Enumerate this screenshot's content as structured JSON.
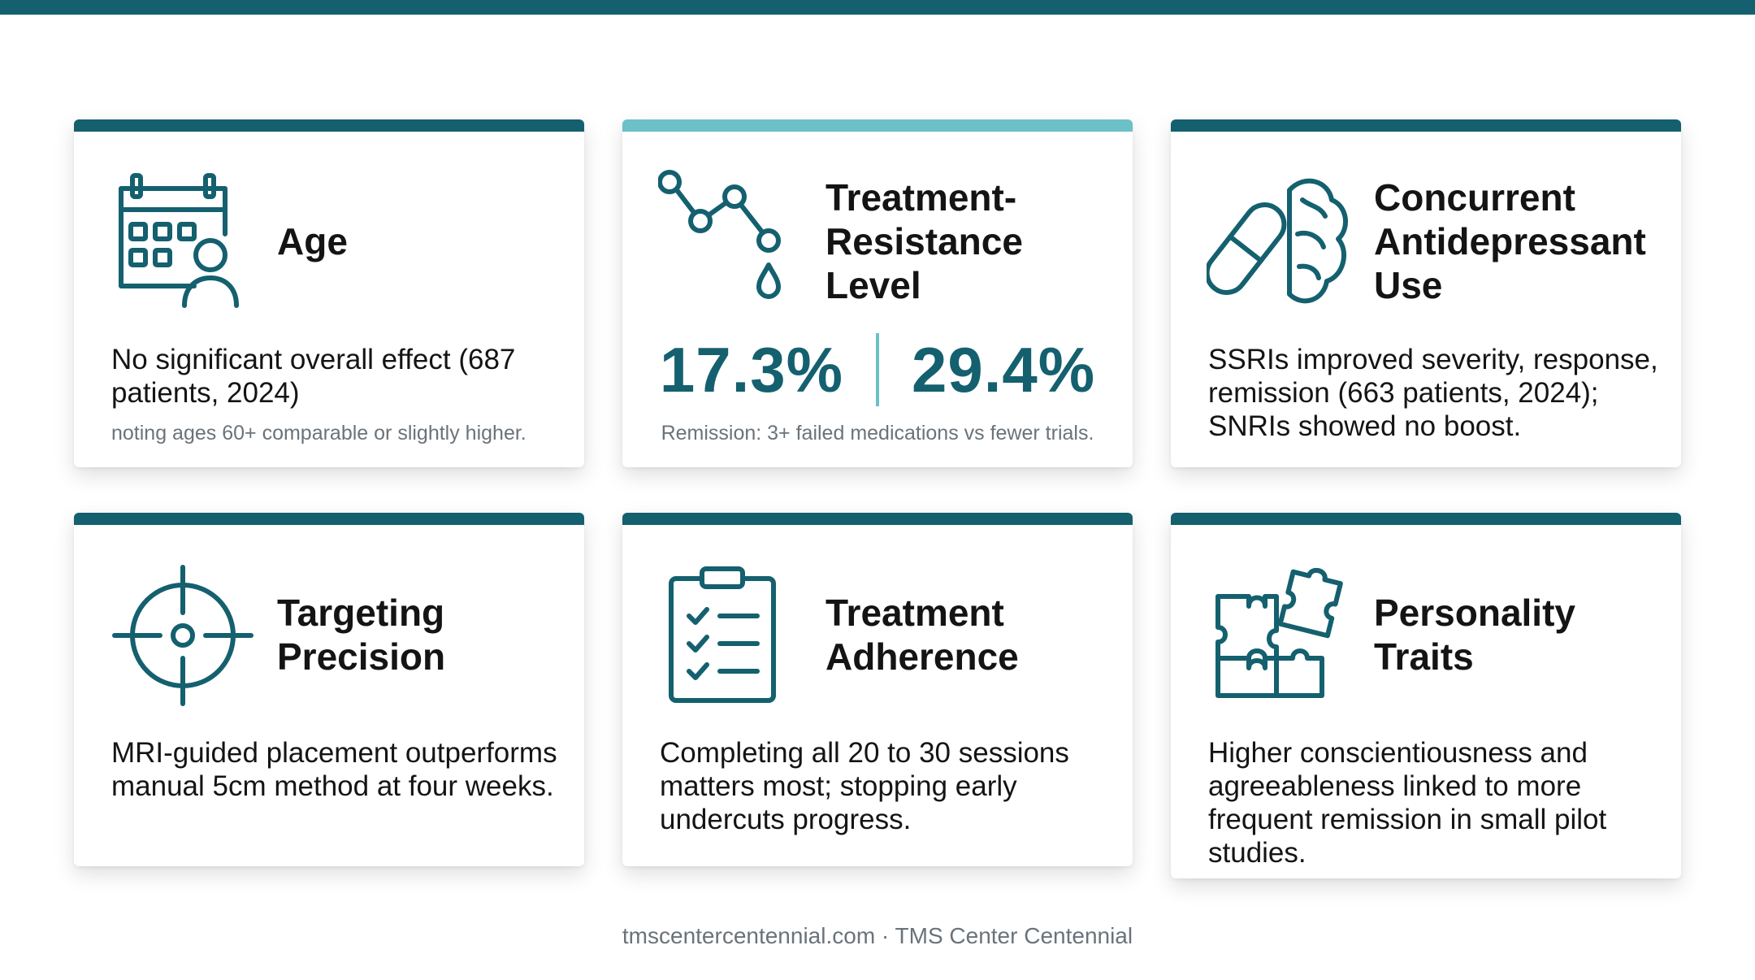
{
  "brand": {
    "primary": "#14606f",
    "accent": "#6cc0c7"
  },
  "cards": [
    {
      "icon": "calendar-person-icon",
      "title": "Age",
      "body": "No significant overall effect (687 patients, 2024)",
      "note": "noting ages 60+ comparable or slightly higher."
    },
    {
      "icon": "trend-line-drop-icon",
      "title": "Treatment-Resistance Level",
      "stats": [
        "17.3%",
        "29.4%"
      ],
      "note": "Remission: 3+ failed medications vs fewer trials."
    },
    {
      "icon": "pill-brain-icon",
      "title": "Concurrent Antidepressant Use",
      "body": "SSRIs improved severity, response, remission (663 patients, 2024); SNRIs showed no boost."
    },
    {
      "icon": "crosshair-target-icon",
      "title": "Targeting Precision",
      "body": "MRI-guided placement outperforms manual 5cm method at four weeks."
    },
    {
      "icon": "clipboard-checklist-icon",
      "title": "Treatment Adherence",
      "body": "Completing all 20 to 30 sessions matters most; stopping early undercuts progress."
    },
    {
      "icon": "puzzle-pieces-icon",
      "title": "Personality Traits",
      "body": "Higher conscientiousness and agreeableness linked to more frequent remission in small pilot studies."
    }
  ],
  "footer": "tmscentercentennial.com · TMS Center Centennial"
}
